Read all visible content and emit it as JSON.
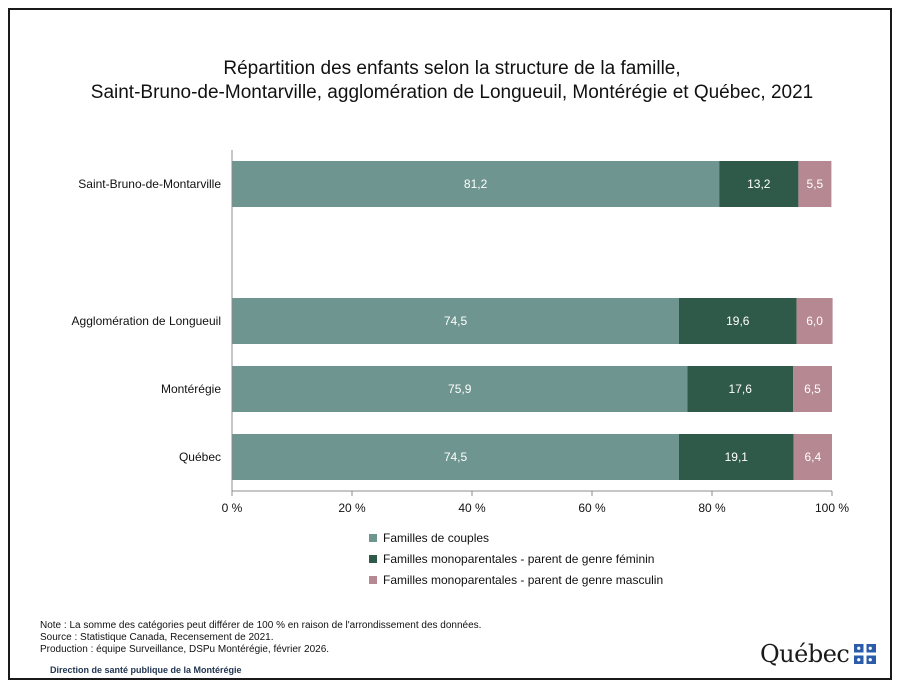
{
  "title_line1": "Répartition des enfants selon la structure de la famille,",
  "title_line2": "Saint-Bruno-de-Montarville, agglomération de Longueuil, Montérégie et Québec, 2021",
  "chart_data": {
    "type": "bar",
    "orientation": "horizontal",
    "stacked": true,
    "categories": [
      "Saint-Bruno-de-Montarville",
      "Agglomération de Longueuil",
      "Montérégie",
      "Québec"
    ],
    "series": [
      {
        "name": "Familles de couples",
        "color": "#6e958f",
        "values": [
          81.2,
          74.5,
          75.9,
          74.5
        ],
        "labels": [
          "81,2",
          "74,5",
          "75,9",
          "74,5"
        ]
      },
      {
        "name": "Familles monoparentales - parent de genre féminin",
        "color": "#2f5948",
        "values": [
          13.2,
          19.6,
          17.6,
          19.1
        ],
        "labels": [
          "13,2",
          "19,6",
          "17,6",
          "19,1"
        ]
      },
      {
        "name": "Familles monoparentales - parent de genre masculin",
        "color": "#b68891",
        "values": [
          5.5,
          6.0,
          6.5,
          6.4
        ],
        "labels": [
          "5,5",
          "6,0",
          "6,5",
          "6,4"
        ]
      }
    ],
    "x_ticks": [
      "0 %",
      "20 %",
      "40 %",
      "60 %",
      "80 %",
      "100 %"
    ],
    "xlim": [
      0,
      100
    ],
    "grid": false,
    "legend_position": "bottom"
  },
  "notes": {
    "note": "Note : La somme des catégories peut différer de 100 % en raison de l'arrondissement des données.",
    "source": "Source : Statistique Canada, Recensement de 2021.",
    "production": "Production : équipe Surveillance, DSPu Montérégie, février 2026."
  },
  "direction": "Direction de santé publique de la Montérégie",
  "logo": {
    "text": "Québec",
    "icon": "fleur-de-lis-flag-icon"
  }
}
